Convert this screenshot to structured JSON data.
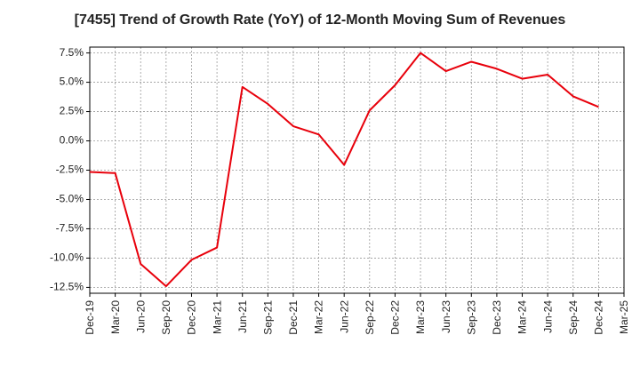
{
  "chart_data": {
    "type": "line",
    "title": "[7455]  Trend of Growth Rate (YoY) of 12-Month Moving Sum of Revenues",
    "xlabel": "",
    "ylabel": "",
    "x_ticks": [
      "Dec-19",
      "Mar-20",
      "Jun-20",
      "Sep-20",
      "Dec-20",
      "Mar-21",
      "Jun-21",
      "Sep-21",
      "Dec-21",
      "Mar-22",
      "Jun-22",
      "Sep-22",
      "Dec-22",
      "Mar-23",
      "Jun-23",
      "Sep-23",
      "Dec-23",
      "Mar-24",
      "Jun-24",
      "Sep-24",
      "Dec-24",
      "Mar-25"
    ],
    "y_ticks": [
      "7.5%",
      "5.0%",
      "2.5%",
      "0.0%",
      "-2.5%",
      "-5.0%",
      "-7.5%",
      "-10.0%",
      "-12.5%"
    ],
    "ylim": [
      -13.0,
      8.0
    ],
    "grid": true,
    "series": [
      {
        "color": "#e8000b",
        "x": [
          "Dec-19",
          "Mar-20",
          "Jun-20",
          "Sep-20",
          "Dec-20",
          "Mar-21",
          "Jun-21",
          "Sep-21",
          "Dec-21",
          "Mar-22",
          "Jun-22",
          "Sep-22",
          "Dec-22",
          "Mar-23",
          "Jun-23",
          "Sep-23",
          "Dec-23",
          "Mar-24",
          "Jun-24",
          "Sep-24",
          "Dec-24"
        ],
        "values": [
          -2.65,
          -2.75,
          -10.5,
          -12.4,
          -10.15,
          -9.1,
          4.6,
          3.15,
          1.25,
          0.55,
          -2.05,
          2.6,
          4.75,
          7.5,
          5.95,
          6.75,
          6.15,
          5.3,
          5.65,
          3.8,
          2.9
        ]
      }
    ]
  }
}
